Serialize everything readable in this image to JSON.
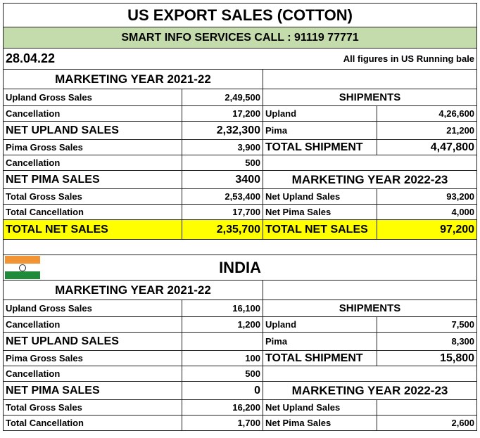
{
  "title": "US EXPORT SALES (COTTON)",
  "banner": "SMART INFO SERVICES CALL : 91119 77771",
  "date": "28.04.22",
  "note": "All figures in US Running bale",
  "sections": [
    {
      "heading": "MARKETING YEAR 2021-22",
      "left": [
        [
          "Upland Gross Sales",
          "2,49,500"
        ],
        [
          "Cancellation",
          "17,200"
        ],
        [
          "NET UPLAND SALES",
          "2,32,300"
        ],
        [
          "Pima Gross Sales",
          "3,900"
        ],
        [
          "Cancellation",
          "500"
        ],
        [
          "NET PIMA SALES",
          "3400"
        ],
        [
          "Total Gross Sales",
          "2,53,400"
        ],
        [
          "Total Cancellation",
          "17,700"
        ],
        [
          "TOTAL NET SALES",
          "2,35,700"
        ]
      ],
      "shipments": {
        "heading": "SHIPMENTS",
        "rows": [
          [
            "Upland",
            "4,26,600"
          ],
          [
            "Pima",
            "21,200"
          ],
          [
            "TOTAL SHIPMENT",
            "4,47,800"
          ]
        ]
      },
      "next_year": {
        "heading": "MARKETING YEAR 2022-23",
        "rows": [
          [
            "Net Upland Sales",
            "93,200"
          ],
          [
            "Net Pima Sales",
            "4,000"
          ],
          [
            "TOTAL NET SALES",
            "97,200"
          ]
        ]
      }
    },
    {
      "country": "INDIA",
      "heading": "MARKETING YEAR 2021-22",
      "left": [
        [
          "Upland Gross Sales",
          "16,100"
        ],
        [
          "Cancellation",
          "1,200"
        ],
        [
          "NET UPLAND SALES"
        ],
        [
          "Pima Gross Sales",
          "100"
        ],
        [
          "Cancellation",
          "500"
        ],
        [
          "NET PIMA SALES",
          "0"
        ],
        [
          "Total Gross Sales",
          "16,200"
        ],
        [
          "Total Cancellation",
          "1,700"
        ]
      ],
      "shipments": {
        "heading": "SHIPMENTS",
        "rows": [
          [
            "Upland",
            "7,500"
          ],
          [
            "Pima",
            "8,300"
          ],
          [
            "TOTAL SHIPMENT",
            "15,800"
          ]
        ]
      },
      "next_year": {
        "heading": "MARKETING YEAR 2022-23",
        "rows": [
          [
            "Net Upland Sales"
          ],
          [
            "Net Pima Sales",
            "2,600"
          ]
        ]
      }
    }
  ]
}
